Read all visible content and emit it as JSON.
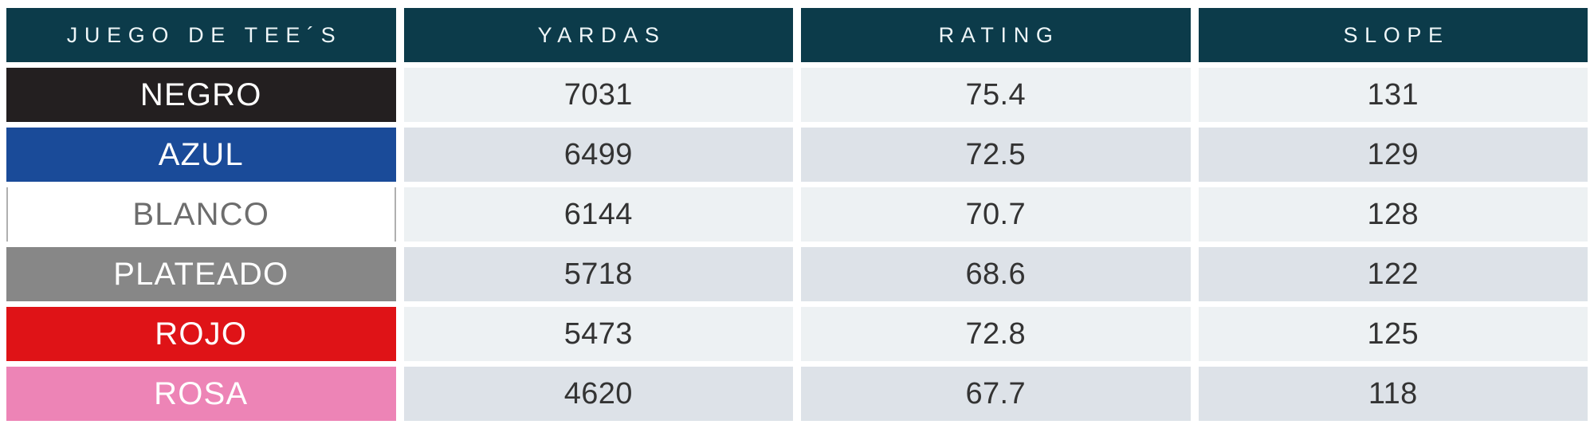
{
  "page": {
    "background": "#ffffff"
  },
  "table": {
    "header_bg": "#0c3b4a",
    "header_text_color": "#eef6f8",
    "stripe_light": "#edf1f3",
    "stripe_dark": "#dde2e8",
    "value_text_color": "#333333",
    "headers": [
      {
        "id": "tees",
        "label": "JUEGO DE TEE´S"
      },
      {
        "id": "yardas",
        "label": "YARDAS"
      },
      {
        "id": "rating",
        "label": "RATING"
      },
      {
        "id": "slope",
        "label": "SLOPE"
      }
    ],
    "rows": [
      {
        "tee": "NEGRO",
        "tee_bg": "#231f20",
        "tee_text": "#ffffff",
        "yardas": "7031",
        "rating": "75.4",
        "slope": "131"
      },
      {
        "tee": "AZUL",
        "tee_bg": "#1a4b99",
        "tee_text": "#ffffff",
        "yardas": "6499",
        "rating": "72.5",
        "slope": "129"
      },
      {
        "tee": "BLANCO",
        "tee_bg": "#ffffff",
        "tee_text": "#6d6d6d",
        "tee_border": "#b0b0b0",
        "yardas": "6144",
        "rating": "70.7",
        "slope": "128"
      },
      {
        "tee": "PLATEADO",
        "tee_bg": "#878787",
        "tee_text": "#ffffff",
        "yardas": "5718",
        "rating": "68.6",
        "slope": "122"
      },
      {
        "tee": "ROJO",
        "tee_bg": "#df1317",
        "tee_text": "#ffffff",
        "yardas": "5473",
        "rating": "72.8",
        "slope": "125"
      },
      {
        "tee": "ROSA",
        "tee_bg": "#ed84b6",
        "tee_text": "#ffffff",
        "yardas": "4620",
        "rating": "67.7",
        "slope": "118"
      }
    ]
  },
  "chart_data": {
    "type": "table",
    "title": "JUEGO DE TEE´S",
    "columns": [
      "JUEGO DE TEE´S",
      "YARDAS",
      "RATING",
      "SLOPE"
    ],
    "rows": [
      [
        "NEGRO",
        7031,
        75.4,
        131
      ],
      [
        "AZUL",
        6499,
        72.5,
        129
      ],
      [
        "BLANCO",
        6144,
        70.7,
        128
      ],
      [
        "PLATEADO",
        5718,
        68.6,
        122
      ],
      [
        "ROJO",
        5473,
        72.8,
        125
      ],
      [
        "ROSA",
        4620,
        67.7,
        118
      ]
    ]
  }
}
